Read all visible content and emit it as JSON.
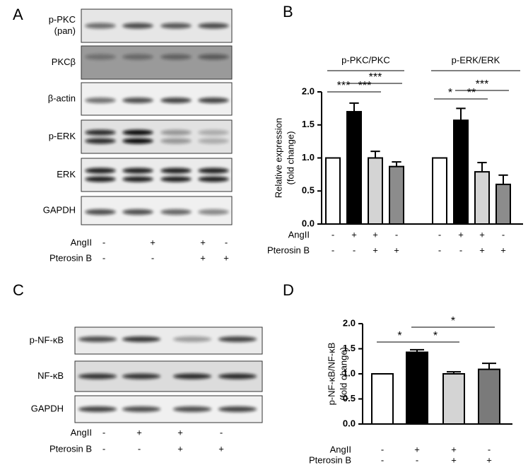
{
  "panels": [
    {
      "label": "A",
      "blot": {
        "rows": [
          {
            "label": [
              "p-PKC",
              "(pan)"
            ]
          },
          {
            "label": [
              "PKCβ"
            ]
          },
          {
            "label": [
              "β-actin"
            ]
          },
          {
            "label": [
              "p-ERK"
            ]
          },
          {
            "label": [
              "ERK"
            ]
          },
          {
            "label": [
              "GAPDH"
            ]
          }
        ]
      },
      "treatments": [
        {
          "name": "AngII",
          "signs": [
            "-",
            "+",
            "+",
            "-"
          ]
        },
        {
          "name": "Pterosin B",
          "signs": [
            "-",
            "-",
            "+",
            "+"
          ]
        }
      ]
    },
    {
      "label": "C",
      "blot": {
        "rows": [
          {
            "label": [
              "p-NF-κB"
            ]
          },
          {
            "label": [
              "NF-κB"
            ]
          },
          {
            "label": [
              "GAPDH"
            ]
          }
        ]
      },
      "treatments": [
        {
          "name": "AngII",
          "signs": [
            "-",
            "+",
            "+",
            "-"
          ]
        },
        {
          "name": "Pterosin B",
          "signs": [
            "-",
            "-",
            "+",
            "+"
          ]
        }
      ]
    }
  ],
  "chart_data": [
    {
      "type": "bar",
      "panel_label": "B",
      "ylabel": [
        "Relative expression",
        "(fold change)"
      ],
      "categories": [
        "p-PKC/PKC",
        "p-ERK/ERK"
      ],
      "series": [
        {
          "color": "#ffffff",
          "values": [
            1.0,
            1.0
          ],
          "errors": [
            0,
            0
          ]
        },
        {
          "color": "#000000",
          "values": [
            1.7,
            1.57
          ],
          "errors": [
            0.13,
            0.18
          ]
        },
        {
          "color": "#d4d4d4",
          "values": [
            1.0,
            0.79
          ],
          "errors": [
            0.1,
            0.14
          ]
        },
        {
          "color": "#8c8c8c",
          "values": [
            0.87,
            0.6
          ],
          "errors": [
            0.07,
            0.14
          ]
        }
      ],
      "ylim": [
        0,
        2.0
      ],
      "yticks": [
        {
          "value": 0,
          "label": "0.0"
        },
        {
          "value": 0.5,
          "label": "0.5"
        },
        {
          "value": 1,
          "label": "1.0"
        },
        {
          "value": 1.5,
          "label": "1.5"
        },
        {
          "value": 2,
          "label": "2.0"
        }
      ],
      "annotations": [
        "***",
        "***",
        "***",
        "*",
        "**",
        "***"
      ],
      "treatments": [
        {
          "name": "AngII",
          "signs": [
            "-",
            "+",
            "+",
            "-",
            "-",
            "+",
            "+",
            "-"
          ]
        },
        {
          "name": "Pterosin B",
          "signs": [
            "-",
            "-",
            "+",
            "+",
            "-",
            "-",
            "+",
            "+"
          ]
        }
      ]
    },
    {
      "type": "bar",
      "panel_label": "D",
      "ylabel": [
        "p-NF-κB/NF-κB",
        "(fold change)"
      ],
      "values": [
        1.0,
        1.43,
        1.0,
        1.09
      ],
      "errors": [
        0,
        0.05,
        0.04,
        0.12
      ],
      "colors": [
        "#ffffff",
        "#000000",
        "#d4d4d4",
        "#7a7a7a"
      ],
      "ylim": [
        0,
        2.0
      ],
      "yticks": [
        {
          "value": 0,
          "label": "0.0"
        },
        {
          "value": 0.5,
          "label": "0.5"
        },
        {
          "value": 1,
          "label": "1.0"
        },
        {
          "value": 1.5,
          "label": "1.5"
        },
        {
          "value": 2,
          "label": "2.0"
        }
      ],
      "annotations": [
        "*",
        "*",
        "*"
      ],
      "treatments": [
        {
          "name": "AngII",
          "signs": [
            "-",
            "+",
            "+",
            "-"
          ]
        },
        {
          "name": "Pterosin B",
          "signs": [
            "-",
            "-",
            "+",
            "+"
          ]
        }
      ]
    }
  ]
}
